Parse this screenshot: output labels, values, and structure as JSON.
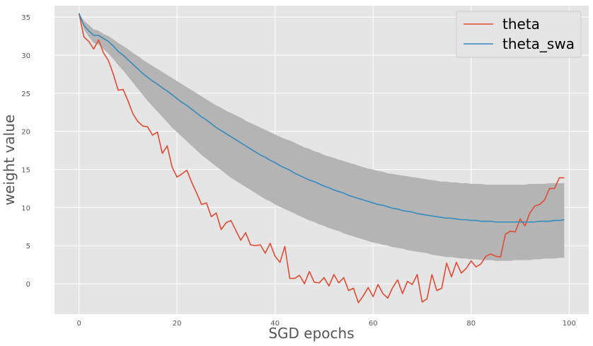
{
  "chart_data": {
    "type": "line",
    "title": "",
    "xlabel": "SGD epochs",
    "ylabel": "weight value",
    "xlim": [
      -5,
      104
    ],
    "ylim": [
      -4,
      36.5
    ],
    "xticks": [
      0,
      20,
      40,
      60,
      80,
      100
    ],
    "yticks": [
      0,
      5,
      10,
      15,
      20,
      25,
      30,
      35
    ],
    "grid": true,
    "legend_position": "top-right",
    "colors": {
      "background": "#e5e5e5",
      "grid": "#ffffff",
      "band": "#b4b4b4",
      "theta": "#e24a33",
      "theta_swa": "#348abd"
    },
    "x": [
      0,
      1,
      2,
      3,
      4,
      5,
      6,
      7,
      8,
      9,
      10,
      11,
      12,
      13,
      14,
      15,
      16,
      17,
      18,
      19,
      20,
      21,
      22,
      23,
      24,
      25,
      26,
      27,
      28,
      29,
      30,
      31,
      32,
      33,
      34,
      35,
      36,
      37,
      38,
      39,
      40,
      41,
      42,
      43,
      44,
      45,
      46,
      47,
      48,
      49,
      50,
      51,
      52,
      53,
      54,
      55,
      56,
      57,
      58,
      59,
      60,
      61,
      62,
      63,
      64,
      65,
      66,
      67,
      68,
      69,
      70,
      71,
      72,
      73,
      74,
      75,
      76,
      77,
      78,
      79,
      80,
      81,
      82,
      83,
      84,
      85,
      86,
      87,
      88,
      89,
      90,
      91,
      92,
      93,
      94,
      95,
      96,
      97,
      98,
      99
    ],
    "series": [
      {
        "name": "theta",
        "values": [
          35.5,
          32.4,
          31.8,
          30.8,
          32.0,
          30.3,
          29.3,
          27.5,
          25.4,
          25.5,
          24.0,
          22.3,
          21.3,
          20.7,
          20.6,
          19.5,
          19.9,
          17.1,
          18.1,
          15.3,
          14.0,
          14.4,
          14.9,
          13.3,
          11.9,
          10.4,
          10.6,
          8.8,
          9.3,
          7.1,
          8.0,
          8.3,
          7.0,
          5.7,
          6.7,
          5.1,
          5.0,
          5.1,
          4.0,
          5.3,
          3.6,
          2.8,
          4.9,
          0.7,
          0.7,
          1.1,
          0.0,
          1.6,
          0.2,
          0.1,
          0.8,
          -0.3,
          1.2,
          0.1,
          0.8,
          -0.9,
          -0.6,
          -2.5,
          -1.6,
          -0.5,
          -1.7,
          -0.1,
          -1.3,
          -1.9,
          -0.5,
          0.5,
          -1.3,
          0.3,
          -0.1,
          1.2,
          -2.4,
          -2.0,
          1.2,
          -0.9,
          -0.6,
          2.7,
          0.9,
          2.8,
          1.4,
          2.0,
          3.0,
          2.2,
          2.6,
          3.6,
          3.9,
          3.6,
          3.5,
          6.5,
          6.9,
          6.8,
          8.5,
          7.6,
          9.3,
          10.2,
          10.4,
          11.0,
          12.5,
          12.5,
          13.9,
          13.9
        ]
      },
      {
        "name": "theta_swa",
        "values": [
          35.5,
          33.9,
          33.2,
          32.6,
          32.6,
          32.2,
          31.8,
          31.2,
          30.5,
          30.0,
          29.4,
          28.8,
          28.2,
          27.6,
          27.1,
          26.6,
          26.2,
          25.7,
          25.3,
          24.8,
          24.3,
          23.8,
          23.4,
          22.9,
          22.4,
          21.9,
          21.5,
          21.0,
          20.5,
          20.1,
          19.7,
          19.3,
          18.9,
          18.5,
          18.1,
          17.7,
          17.3,
          16.9,
          16.6,
          16.2,
          15.9,
          15.5,
          15.2,
          14.9,
          14.5,
          14.2,
          13.9,
          13.6,
          13.4,
          13.1,
          12.8,
          12.6,
          12.3,
          12.1,
          11.9,
          11.6,
          11.4,
          11.2,
          11.0,
          10.8,
          10.6,
          10.4,
          10.3,
          10.1,
          9.9,
          9.8,
          9.6,
          9.5,
          9.4,
          9.2,
          9.1,
          9.0,
          8.9,
          8.8,
          8.7,
          8.6,
          8.6,
          8.5,
          8.4,
          8.4,
          8.3,
          8.3,
          8.2,
          8.2,
          8.2,
          8.1,
          8.1,
          8.1,
          8.1,
          8.1,
          8.1,
          8.1,
          8.1,
          8.1,
          8.2,
          8.2,
          8.2,
          8.3,
          8.3,
          8.4
        ]
      }
    ],
    "band": {
      "upper": [
        35.5,
        34.5,
        34.0,
        33.4,
        33.2,
        32.8,
        32.5,
        32.1,
        31.6,
        31.2,
        30.8,
        30.3,
        29.9,
        29.4,
        29.0,
        28.6,
        28.2,
        27.8,
        27.4,
        27.0,
        26.6,
        26.2,
        25.8,
        25.4,
        25.0,
        24.6,
        24.2,
        23.8,
        23.4,
        23.1,
        22.7,
        22.4,
        22.1,
        21.8,
        21.4,
        21.1,
        20.8,
        20.5,
        20.2,
        19.9,
        19.6,
        19.3,
        19.0,
        18.8,
        18.5,
        18.2,
        17.9,
        17.7,
        17.4,
        17.2,
        16.9,
        16.7,
        16.5,
        16.3,
        16.1,
        15.9,
        15.7,
        15.5,
        15.3,
        15.1,
        15.0,
        14.8,
        14.7,
        14.5,
        14.4,
        14.3,
        14.2,
        14.1,
        14.0,
        13.9,
        13.8,
        13.7,
        13.6,
        13.5,
        13.4,
        13.4,
        13.3,
        13.3,
        13.2,
        13.2,
        13.1,
        13.1,
        13.1,
        13.0,
        13.0,
        13.0,
        13.0,
        13.0,
        13.0,
        13.0,
        13.0,
        13.0,
        13.1,
        13.1,
        13.1,
        13.1,
        13.2,
        13.2,
        13.2,
        13.2
      ],
      "lower": [
        35.5,
        33.4,
        32.4,
        31.6,
        31.4,
        30.8,
        30.2,
        29.5,
        28.7,
        28.0,
        27.2,
        26.4,
        25.6,
        24.8,
        24.0,
        23.3,
        22.6,
        21.9,
        21.2,
        20.5,
        19.9,
        19.3,
        18.7,
        18.1,
        17.5,
        16.9,
        16.4,
        15.9,
        15.4,
        14.9,
        14.4,
        13.9,
        13.5,
        13.1,
        12.7,
        12.3,
        11.9,
        11.5,
        11.1,
        10.8,
        10.4,
        10.1,
        9.8,
        9.5,
        9.2,
        8.9,
        8.6,
        8.3,
        8.1,
        7.8,
        7.6,
        7.3,
        7.1,
        6.9,
        6.6,
        6.4,
        6.2,
        6.0,
        5.8,
        5.6,
        5.4,
        5.3,
        5.1,
        5.0,
        4.8,
        4.7,
        4.6,
        4.4,
        4.3,
        4.2,
        4.1,
        4.0,
        3.8,
        3.7,
        3.6,
        3.5,
        3.5,
        3.4,
        3.3,
        3.3,
        3.2,
        3.2,
        3.1,
        3.1,
        3.1,
        3.0,
        3.0,
        3.0,
        3.0,
        3.1,
        3.1,
        3.1,
        3.1,
        3.2,
        3.2,
        3.3,
        3.3,
        3.3,
        3.4,
        3.4
      ]
    }
  }
}
